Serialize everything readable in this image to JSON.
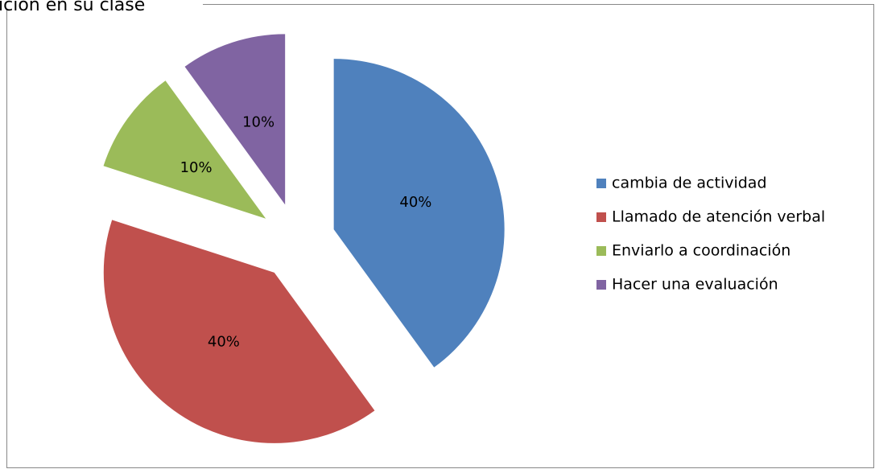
{
  "chart_data": {
    "type": "pie",
    "title": "ición en su clase",
    "categories": [
      "cambia de actividad",
      "Llamado de atención verbal",
      "Enviarlo a coordinación",
      "Hacer una evaluación"
    ],
    "values": [
      40,
      40,
      10,
      10
    ],
    "value_labels": [
      "40%",
      "40%",
      "10%",
      "10%"
    ],
    "colors": [
      "#4f81bd",
      "#c0504d",
      "#9bbb59",
      "#8064a2"
    ],
    "legend": "right"
  }
}
